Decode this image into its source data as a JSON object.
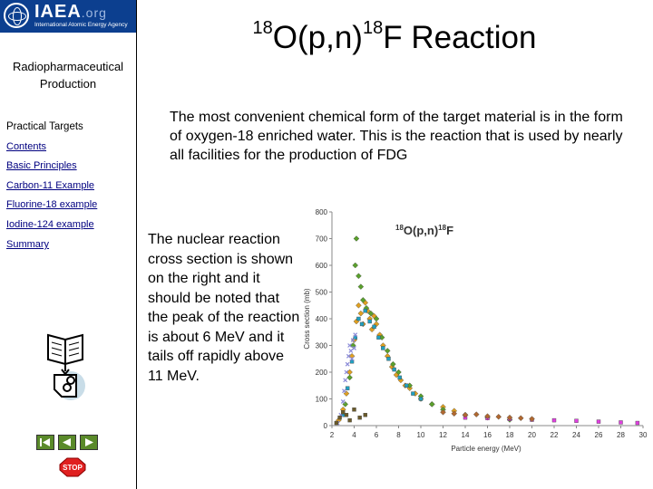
{
  "sidebar": {
    "logo": {
      "name": "IAEA",
      "org": ".org",
      "subtitle": "International Atomic Energy Agency"
    },
    "production_label": "Radiopharmaceutical\nProduction",
    "nav_heading": "Practical Targets",
    "nav_items": [
      {
        "label": "Contents"
      },
      {
        "label": "Basic Principles"
      },
      {
        "label": "Carbon-11 Example"
      },
      {
        "label": "Fluorine-18 example"
      },
      {
        "label": "Iodine-124 example"
      },
      {
        "label": "Summary"
      }
    ],
    "stop_label": "STOP"
  },
  "main": {
    "title": {
      "pre_sup": "18",
      "part1": "O(p,n)",
      "mid_sup": "18",
      "part2": "F Reaction"
    },
    "intro": "The most convenient chemical form of the target material is in the form of oxygen-18 enriched water.  This is the reaction that is used by nearly all facilities for the production of FDG",
    "description": "The nuclear reaction cross section is shown on the right and it should be noted that the peak of the reaction is about 6 MeV and it tails off rapidly above 11 MeV."
  },
  "chart_data": {
    "type": "scatter",
    "title": {
      "sup": "18",
      "rest": "O(p,n)",
      "sup2": "18",
      "rest2": "F"
    },
    "xlabel": "Particle energy (MeV)",
    "ylabel": "Cross section (mb)",
    "xlim": [
      2,
      30
    ],
    "ylim": [
      0,
      800
    ],
    "xticks": [
      2,
      4,
      6,
      8,
      10,
      12,
      14,
      16,
      18,
      20,
      22,
      24,
      26,
      28,
      30
    ],
    "yticks": [
      0,
      100,
      200,
      300,
      400,
      500,
      600,
      700,
      800
    ],
    "grid": false,
    "series": [
      {
        "color": "#e0a020",
        "shape": "diamond",
        "points": [
          [
            2.6,
            20
          ],
          [
            3.0,
            60
          ],
          [
            3.3,
            120
          ],
          [
            3.6,
            200
          ],
          [
            3.8,
            260
          ],
          [
            4.0,
            320
          ],
          [
            4.2,
            390
          ],
          [
            4.4,
            450
          ],
          [
            4.6,
            420
          ],
          [
            4.8,
            380
          ],
          [
            5.0,
            460
          ],
          [
            5.2,
            430
          ],
          [
            5.4,
            400
          ],
          [
            5.6,
            360
          ],
          [
            5.8,
            410
          ],
          [
            6.0,
            380
          ],
          [
            6.3,
            340
          ],
          [
            6.6,
            300
          ],
          [
            7.0,
            260
          ],
          [
            7.4,
            220
          ],
          [
            7.8,
            190
          ],
          [
            8.2,
            170
          ],
          [
            8.6,
            150
          ],
          [
            9.0,
            140
          ],
          [
            9.5,
            120
          ],
          [
            10,
            100
          ],
          [
            11,
            80
          ],
          [
            12,
            70
          ],
          [
            13,
            55
          ]
        ]
      },
      {
        "color": "#5aa02c",
        "shape": "diamond",
        "points": [
          [
            3.2,
            80
          ],
          [
            3.6,
            180
          ],
          [
            3.9,
            300
          ],
          [
            4.1,
            600
          ],
          [
            4.2,
            700
          ],
          [
            4.4,
            560
          ],
          [
            4.6,
            520
          ],
          [
            4.8,
            470
          ],
          [
            5.1,
            440
          ],
          [
            5.5,
            420
          ],
          [
            6.0,
            400
          ],
          [
            6.5,
            330
          ],
          [
            7.0,
            280
          ],
          [
            7.5,
            230
          ],
          [
            8,
            200
          ],
          [
            9,
            150
          ],
          [
            10,
            110
          ],
          [
            11,
            80
          ],
          [
            12,
            60
          ],
          [
            14,
            40
          ],
          [
            16,
            30
          ],
          [
            18,
            22
          ]
        ]
      },
      {
        "color": "#20a0c0",
        "shape": "square",
        "points": [
          [
            3.0,
            40
          ],
          [
            3.4,
            140
          ],
          [
            3.8,
            240
          ],
          [
            4.1,
            330
          ],
          [
            4.4,
            400
          ],
          [
            4.7,
            380
          ],
          [
            5.0,
            430
          ],
          [
            5.4,
            390
          ],
          [
            5.8,
            370
          ],
          [
            6.2,
            330
          ],
          [
            6.6,
            290
          ],
          [
            7.1,
            250
          ],
          [
            7.6,
            210
          ],
          [
            8.1,
            180
          ],
          [
            8.7,
            150
          ],
          [
            9.3,
            120
          ],
          [
            10,
            100
          ]
        ]
      },
      {
        "color": "#8a8ad8",
        "shape": "x",
        "points": [
          [
            2.5,
            10
          ],
          [
            2.8,
            40
          ],
          [
            3.0,
            90
          ],
          [
            3.1,
            130
          ],
          [
            3.2,
            170
          ],
          [
            3.3,
            200
          ],
          [
            3.4,
            230
          ],
          [
            3.5,
            260
          ],
          [
            3.6,
            300
          ],
          [
            3.7,
            280
          ],
          [
            3.8,
            250
          ],
          [
            3.9,
            320
          ],
          [
            4.0,
            290
          ],
          [
            4.1,
            340
          ]
        ]
      },
      {
        "color": "#6a5a2a",
        "shape": "square",
        "points": [
          [
            2.4,
            10
          ],
          [
            2.7,
            30
          ],
          [
            3.0,
            50
          ],
          [
            3.3,
            40
          ],
          [
            3.6,
            20
          ],
          [
            4.0,
            60
          ],
          [
            4.5,
            30
          ],
          [
            5.0,
            40
          ]
        ]
      },
      {
        "color": "#e040e0",
        "shape": "square",
        "points": [
          [
            14,
            30
          ],
          [
            16,
            28
          ],
          [
            18,
            25
          ],
          [
            20,
            22
          ],
          [
            22,
            20
          ],
          [
            24,
            18
          ],
          [
            26,
            15
          ],
          [
            28,
            12
          ],
          [
            29.5,
            10
          ]
        ]
      },
      {
        "color": "#b06830",
        "shape": "diamond",
        "points": [
          [
            12,
            50
          ],
          [
            13,
            45
          ],
          [
            14,
            40
          ],
          [
            15,
            42
          ],
          [
            16,
            35
          ],
          [
            17,
            33
          ],
          [
            18,
            30
          ],
          [
            19,
            28
          ],
          [
            20,
            25
          ]
        ]
      }
    ]
  }
}
